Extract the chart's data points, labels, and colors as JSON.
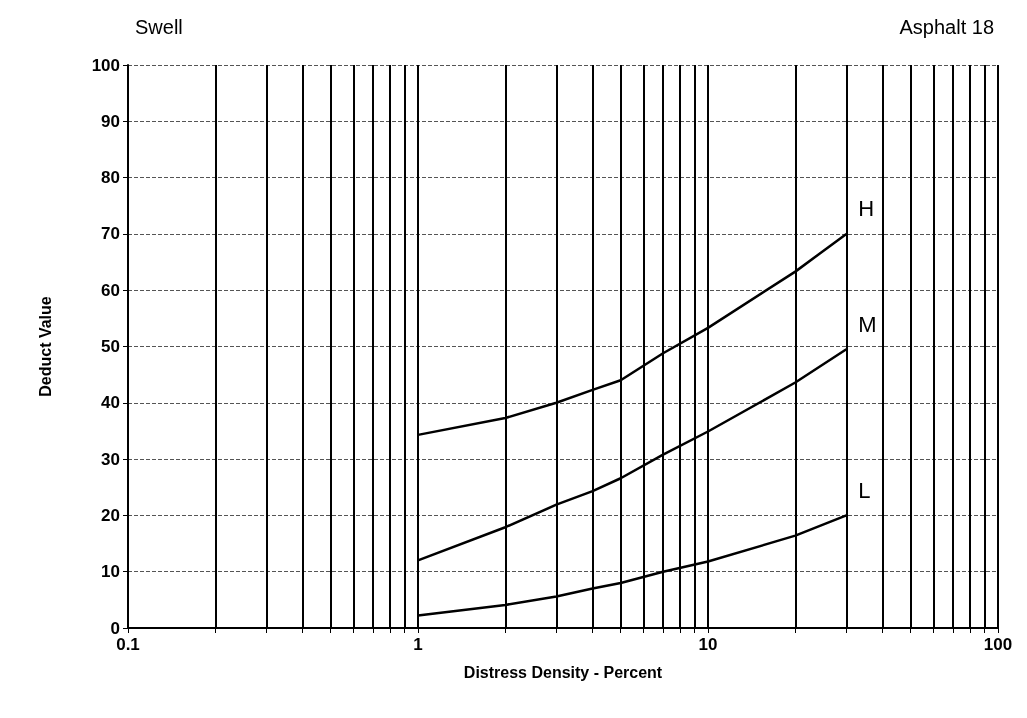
{
  "chart_data": {
    "type": "line",
    "title": "Swell",
    "subtitle": "Asphalt 18",
    "xlabel": "Distress Density - Percent",
    "ylabel": "Deduct Value",
    "log": "x",
    "xlim": [
      0.1,
      100
    ],
    "xticks": [
      0.1,
      {
        "value": 0.2,
        "label": null
      },
      {
        "value": 0.3,
        "label": null
      },
      {
        "value": 0.4,
        "label": null
      },
      {
        "value": 0.5,
        "label": null
      },
      {
        "value": 0.6,
        "label": null
      },
      {
        "value": 0.7,
        "label": null
      },
      {
        "value": 0.8,
        "label": null
      },
      {
        "value": 0.9,
        "label": null
      },
      1,
      {
        "value": 2,
        "label": null
      },
      {
        "value": 3,
        "label": null
      },
      {
        "value": 4,
        "label": null
      },
      {
        "value": 5,
        "label": null
      },
      {
        "value": 6,
        "label": null
      },
      {
        "value": 7,
        "label": null
      },
      {
        "value": 8,
        "label": null
      },
      {
        "value": 9,
        "label": null
      },
      10,
      {
        "value": 20,
        "label": null
      },
      {
        "value": 30,
        "label": null
      },
      {
        "value": 40,
        "label": null
      },
      {
        "value": 50,
        "label": null
      },
      {
        "value": 60,
        "label": null
      },
      {
        "value": 70,
        "label": null
      },
      {
        "value": 80,
        "label": null
      },
      {
        "value": 90,
        "label": null
      },
      100
    ],
    "ylim": [
      0,
      100
    ],
    "yticks": [
      0,
      10,
      20,
      30,
      40,
      50,
      60,
      70,
      80,
      90,
      100
    ],
    "grid": true,
    "marker": "none",
    "line_style": "solid",
    "legend": false,
    "x": [
      1,
      2,
      3,
      4,
      5,
      7,
      10,
      20,
      30
    ],
    "series": [
      {
        "name": "H",
        "color": "#000000",
        "values": [
          34.3,
          37.3,
          40,
          42.3,
          44,
          48.8,
          53.3,
          63.3,
          70
        ]
      },
      {
        "name": "M",
        "color": "#000000",
        "values": [
          12,
          17.9,
          21.9,
          24.3,
          26.6,
          30.8,
          34.9,
          43.6,
          49.5
        ]
      },
      {
        "name": "L",
        "color": "#000000",
        "values": [
          2.2,
          4.1,
          5.6,
          7,
          8,
          10,
          11.8,
          16.4,
          20
        ]
      }
    ]
  }
}
